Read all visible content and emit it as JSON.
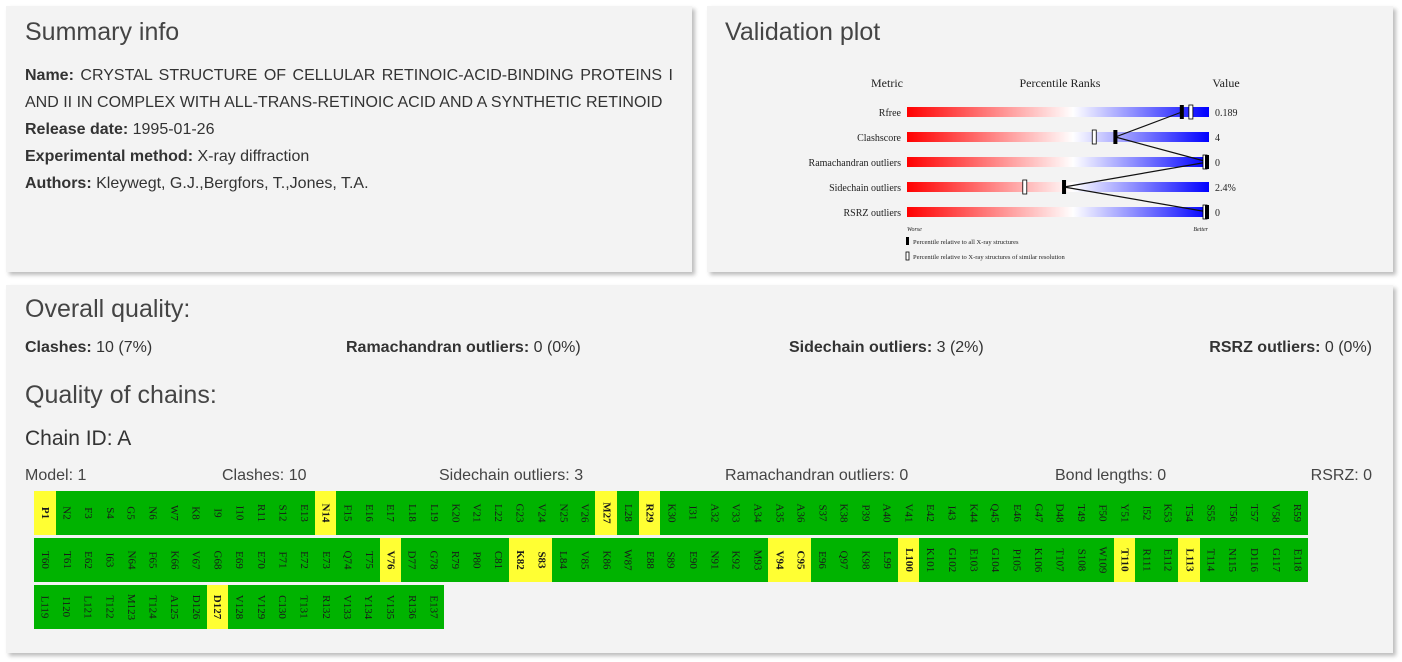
{
  "summary": {
    "title": "Summary info",
    "name_label": "Name:",
    "name_value": "CRYSTAL STRUCTURE OF CELLULAR RETINOIC-ACID-BINDING PROTEINS I AND II IN COMPLEX WITH ALL-TRANS-RETINOIC ACID AND A SYNTHETIC RETINOID",
    "release_label": "Release date:",
    "release_value": "1995-01-26",
    "method_label": "Experimental method:",
    "method_value": "X-ray diffraction",
    "authors_label": "Authors:",
    "authors_value": "Kleywegt, G.J.,Bergfors, T.,Jones, T.A."
  },
  "validation": {
    "title": "Validation plot",
    "header_metric": "Metric",
    "header_ranks": "Percentile Ranks",
    "header_value": "Value",
    "worse_label": "Worse",
    "better_label": "Better",
    "legend_all": "Percentile relative to all X-ray structures",
    "legend_similar": "Percentile relative to X-ray structures of similar resolution",
    "metrics": [
      {
        "name": "Rfree",
        "value": "0.189",
        "pct_all": 0.91,
        "pct_similar": 0.94
      },
      {
        "name": "Clashscore",
        "value": "4",
        "pct_all": 0.69,
        "pct_similar": 0.62
      },
      {
        "name": "Ramachandran outliers",
        "value": "0",
        "pct_all": 1.0,
        "pct_similar": 1.0
      },
      {
        "name": "Sidechain outliers",
        "value": "2.4%",
        "pct_all": 0.52,
        "pct_similar": 0.39
      },
      {
        "name": "RSRZ outliers",
        "value": "0",
        "pct_all": 1.0,
        "pct_similar": 1.0
      }
    ],
    "colors": {
      "worse": "#ff0000",
      "mid": "#ffffff",
      "better": "#0000ff"
    }
  },
  "quality": {
    "title": "Overall quality:",
    "clashes_label": "Clashes:",
    "clashes_value": "10 (7%)",
    "rama_label": "Ramachandran outliers:",
    "rama_value": "0 (0%)",
    "side_label": "Sidechain outliers:",
    "side_value": "3 (2%)",
    "rsrz_label": "RSRZ outliers:",
    "rsrz_value": "0 (0%)"
  },
  "chains": {
    "title": "Quality of chains:",
    "chain_id": "Chain ID: A",
    "model": "Model: 1",
    "clashes": "Clashes: 10",
    "sidechain": "Sidechain outliers: 3",
    "rama": "Ramachandran outliers: 0",
    "bond": "Bond lengths: 0",
    "rsrz": "RSRZ: 0",
    "colors": {
      "ok": "#00b300",
      "flag": "#ffff33"
    },
    "residues": [
      {
        "id": "P1",
        "f": 1
      },
      {
        "id": "N2",
        "f": 0
      },
      {
        "id": "F3",
        "f": 0
      },
      {
        "id": "S4",
        "f": 0
      },
      {
        "id": "G5",
        "f": 0
      },
      {
        "id": "N6",
        "f": 0
      },
      {
        "id": "W7",
        "f": 0
      },
      {
        "id": "K8",
        "f": 0
      },
      {
        "id": "I9",
        "f": 0
      },
      {
        "id": "I10",
        "f": 0
      },
      {
        "id": "R11",
        "f": 0
      },
      {
        "id": "S12",
        "f": 0
      },
      {
        "id": "E13",
        "f": 0
      },
      {
        "id": "N14",
        "f": 1
      },
      {
        "id": "F15",
        "f": 0
      },
      {
        "id": "E16",
        "f": 0
      },
      {
        "id": "E17",
        "f": 0
      },
      {
        "id": "L18",
        "f": 0
      },
      {
        "id": "L19",
        "f": 0
      },
      {
        "id": "K20",
        "f": 0
      },
      {
        "id": "V21",
        "f": 0
      },
      {
        "id": "L22",
        "f": 0
      },
      {
        "id": "G23",
        "f": 0
      },
      {
        "id": "V24",
        "f": 0
      },
      {
        "id": "N25",
        "f": 0
      },
      {
        "id": "V26",
        "f": 0
      },
      {
        "id": "M27",
        "f": 1
      },
      {
        "id": "L28",
        "f": 0
      },
      {
        "id": "R29",
        "f": 1
      },
      {
        "id": "K30",
        "f": 0
      },
      {
        "id": "I31",
        "f": 0
      },
      {
        "id": "A32",
        "f": 0
      },
      {
        "id": "V33",
        "f": 0
      },
      {
        "id": "A34",
        "f": 0
      },
      {
        "id": "A35",
        "f": 0
      },
      {
        "id": "A36",
        "f": 0
      },
      {
        "id": "S37",
        "f": 0
      },
      {
        "id": "K38",
        "f": 0
      },
      {
        "id": "P39",
        "f": 0
      },
      {
        "id": "A40",
        "f": 0
      },
      {
        "id": "V41",
        "f": 0
      },
      {
        "id": "E42",
        "f": 0
      },
      {
        "id": "I43",
        "f": 0
      },
      {
        "id": "K44",
        "f": 0
      },
      {
        "id": "Q45",
        "f": 0
      },
      {
        "id": "E46",
        "f": 0
      },
      {
        "id": "G47",
        "f": 0
      },
      {
        "id": "D48",
        "f": 0
      },
      {
        "id": "T49",
        "f": 0
      },
      {
        "id": "F50",
        "f": 0
      },
      {
        "id": "Y51",
        "f": 0
      },
      {
        "id": "I52",
        "f": 0
      },
      {
        "id": "K53",
        "f": 0
      },
      {
        "id": "T54",
        "f": 0
      },
      {
        "id": "S55",
        "f": 0
      },
      {
        "id": "T56",
        "f": 0
      },
      {
        "id": "T57",
        "f": 0
      },
      {
        "id": "V58",
        "f": 0
      },
      {
        "id": "R59",
        "f": 0
      },
      {
        "id": "T60",
        "f": 0
      },
      {
        "id": "T61",
        "f": 0
      },
      {
        "id": "E62",
        "f": 0
      },
      {
        "id": "I63",
        "f": 0
      },
      {
        "id": "N64",
        "f": 0
      },
      {
        "id": "F65",
        "f": 0
      },
      {
        "id": "K66",
        "f": 0
      },
      {
        "id": "V67",
        "f": 0
      },
      {
        "id": "G68",
        "f": 0
      },
      {
        "id": "E69",
        "f": 0
      },
      {
        "id": "E70",
        "f": 0
      },
      {
        "id": "F71",
        "f": 0
      },
      {
        "id": "E72",
        "f": 0
      },
      {
        "id": "E73",
        "f": 0
      },
      {
        "id": "Q74",
        "f": 0
      },
      {
        "id": "T75",
        "f": 0
      },
      {
        "id": "V76",
        "f": 1
      },
      {
        "id": "D77",
        "f": 0
      },
      {
        "id": "G78",
        "f": 0
      },
      {
        "id": "R79",
        "f": 0
      },
      {
        "id": "P80",
        "f": 0
      },
      {
        "id": "C81",
        "f": 0
      },
      {
        "id": "K82",
        "f": 1
      },
      {
        "id": "S83",
        "f": 1
      },
      {
        "id": "L84",
        "f": 0
      },
      {
        "id": "V85",
        "f": 0
      },
      {
        "id": "K86",
        "f": 0
      },
      {
        "id": "W87",
        "f": 0
      },
      {
        "id": "E88",
        "f": 0
      },
      {
        "id": "S89",
        "f": 0
      },
      {
        "id": "E90",
        "f": 0
      },
      {
        "id": "N91",
        "f": 0
      },
      {
        "id": "K92",
        "f": 0
      },
      {
        "id": "M93",
        "f": 0
      },
      {
        "id": "V94",
        "f": 1
      },
      {
        "id": "C95",
        "f": 1
      },
      {
        "id": "E96",
        "f": 0
      },
      {
        "id": "Q97",
        "f": 0
      },
      {
        "id": "K98",
        "f": 0
      },
      {
        "id": "L99",
        "f": 0
      },
      {
        "id": "L100",
        "f": 1
      },
      {
        "id": "K101",
        "f": 0
      },
      {
        "id": "G102",
        "f": 0
      },
      {
        "id": "E103",
        "f": 0
      },
      {
        "id": "G104",
        "f": 0
      },
      {
        "id": "P105",
        "f": 0
      },
      {
        "id": "K106",
        "f": 0
      },
      {
        "id": "T107",
        "f": 0
      },
      {
        "id": "S108",
        "f": 0
      },
      {
        "id": "W109",
        "f": 0
      },
      {
        "id": "T110",
        "f": 1
      },
      {
        "id": "R111",
        "f": 0
      },
      {
        "id": "E112",
        "f": 0
      },
      {
        "id": "L113",
        "f": 1
      },
      {
        "id": "T114",
        "f": 0
      },
      {
        "id": "N115",
        "f": 0
      },
      {
        "id": "D116",
        "f": 0
      },
      {
        "id": "G117",
        "f": 0
      },
      {
        "id": "E118",
        "f": 0
      },
      {
        "id": "L119",
        "f": 0
      },
      {
        "id": "I120",
        "f": 0
      },
      {
        "id": "L121",
        "f": 0
      },
      {
        "id": "T122",
        "f": 0
      },
      {
        "id": "M123",
        "f": 0
      },
      {
        "id": "T124",
        "f": 0
      },
      {
        "id": "A125",
        "f": 0
      },
      {
        "id": "D126",
        "f": 0
      },
      {
        "id": "D127",
        "f": 1
      },
      {
        "id": "V128",
        "f": 0
      },
      {
        "id": "V129",
        "f": 0
      },
      {
        "id": "C130",
        "f": 0
      },
      {
        "id": "T131",
        "f": 0
      },
      {
        "id": "R132",
        "f": 0
      },
      {
        "id": "V133",
        "f": 0
      },
      {
        "id": "Y134",
        "f": 0
      },
      {
        "id": "V135",
        "f": 0
      },
      {
        "id": "R136",
        "f": 0
      },
      {
        "id": "E137",
        "f": 0
      }
    ]
  }
}
